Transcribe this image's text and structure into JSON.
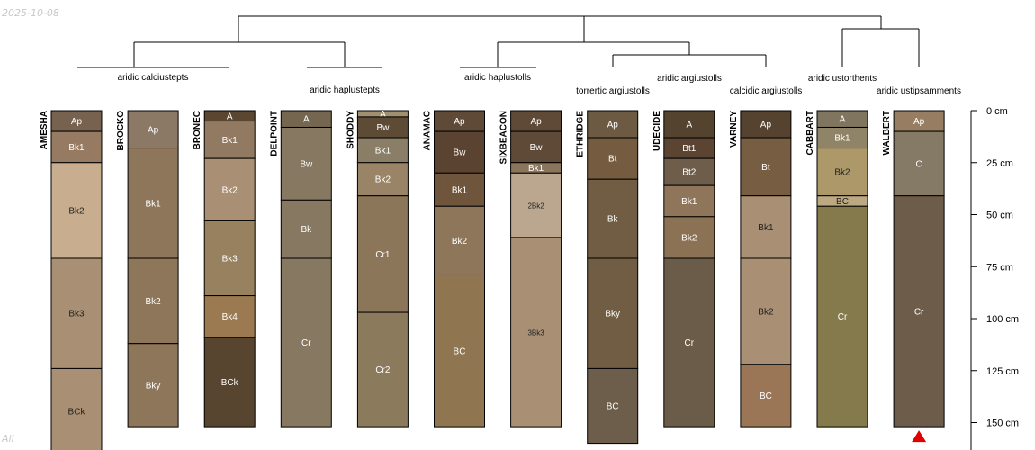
{
  "date_stamp": "2025-10-08",
  "corner_label": "All",
  "depth_axis": {
    "ticks": [
      {
        "depth": 0,
        "label": "0 cm"
      },
      {
        "depth": 25,
        "label": "25 cm"
      },
      {
        "depth": 50,
        "label": "50 cm"
      },
      {
        "depth": 75,
        "label": "75 cm"
      },
      {
        "depth": 100,
        "label": "100 cm"
      },
      {
        "depth": 125,
        "label": "125 cm"
      },
      {
        "depth": 150,
        "label": "150 cm"
      }
    ]
  },
  "taxa_labels": [
    "aridic calciustepts",
    "aridic haplustepts",
    "aridic haplustolls",
    "torrertic argiustolls",
    "aridic argiustolls",
    "calcidic argiustolls",
    "aridic ustorthents",
    "aridic ustipsamments"
  ],
  "marker": {
    "profile": "WALBERT",
    "color": "#e00000",
    "shape": "triangle"
  },
  "profiles": [
    {
      "name": "AMESHA",
      "horizons": [
        {
          "name": "Ap",
          "top": 0,
          "bottom": 10,
          "color": "#76624f",
          "text": "#ffffff"
        },
        {
          "name": "Bk1",
          "top": 10,
          "bottom": 25,
          "color": "#967b62",
          "text": "#ffffff"
        },
        {
          "name": "Bk2",
          "top": 25,
          "bottom": 71,
          "color": "#c8ae8f",
          "text": "#222222"
        },
        {
          "name": "Bk3",
          "top": 71,
          "bottom": 124,
          "color": "#a98f73",
          "text": "#222222"
        },
        {
          "name": "BCk",
          "top": 124,
          "bottom": 165,
          "color": "#a98f73",
          "text": "#222222"
        }
      ]
    },
    {
      "name": "BROCKO",
      "horizons": [
        {
          "name": "Ap",
          "top": 0,
          "bottom": 18,
          "color": "#8b7966",
          "text": "#ffffff"
        },
        {
          "name": "Bk1",
          "top": 18,
          "bottom": 71,
          "color": "#8d7659",
          "text": "#ffffff"
        },
        {
          "name": "Bk2",
          "top": 71,
          "bottom": 112,
          "color": "#8d7659",
          "text": "#ffffff"
        },
        {
          "name": "Bky",
          "top": 112,
          "bottom": 152,
          "color": "#8d7659",
          "text": "#ffffff"
        }
      ]
    },
    {
      "name": "BRONEC",
      "horizons": [
        {
          "name": "A",
          "top": 0,
          "bottom": 5,
          "color": "#5b4632",
          "text": "#ffffff"
        },
        {
          "name": "Bk1",
          "top": 5,
          "bottom": 23,
          "color": "#927a62",
          "text": "#ffffff"
        },
        {
          "name": "Bk2",
          "top": 23,
          "bottom": 53,
          "color": "#a98f73",
          "text": "#ffffff"
        },
        {
          "name": "Bk3",
          "top": 53,
          "bottom": 89,
          "color": "#97815f",
          "text": "#ffffff"
        },
        {
          "name": "Bk4",
          "top": 89,
          "bottom": 109,
          "color": "#9b7a52",
          "text": "#ffffff"
        },
        {
          "name": "BCk",
          "top": 109,
          "bottom": 152,
          "color": "#584530",
          "text": "#ffffff"
        }
      ]
    },
    {
      "name": "DELPOINT",
      "horizons": [
        {
          "name": "A",
          "top": 0,
          "bottom": 8,
          "color": "#756650",
          "text": "#ffffff"
        },
        {
          "name": "Bw",
          "top": 8,
          "bottom": 43,
          "color": "#877862",
          "text": "#ffffff"
        },
        {
          "name": "Bk",
          "top": 43,
          "bottom": 71,
          "color": "#877862",
          "text": "#ffffff"
        },
        {
          "name": "Cr",
          "top": 71,
          "bottom": 152,
          "color": "#877862",
          "text": "#ffffff"
        }
      ]
    },
    {
      "name": "SHODDY",
      "horizons": [
        {
          "name": "A",
          "top": 0,
          "bottom": 3,
          "color": "#a0906f",
          "text": "#ffffff"
        },
        {
          "name": "Bw",
          "top": 3,
          "bottom": 13,
          "color": "#5e4b36",
          "text": "#ffffff"
        },
        {
          "name": "Bk1",
          "top": 13,
          "bottom": 25,
          "color": "#8b7e67",
          "text": "#ffffff"
        },
        {
          "name": "Bk2",
          "top": 25,
          "bottom": 41,
          "color": "#9a8468",
          "text": "#ffffff"
        },
        {
          "name": "Cr1",
          "top": 41,
          "bottom": 97,
          "color": "#8c7659",
          "text": "#ffffff"
        },
        {
          "name": "Cr2",
          "top": 97,
          "bottom": 152,
          "color": "#8c7a5c",
          "text": "#ffffff"
        }
      ]
    },
    {
      "name": "ANAMAC",
      "horizons": [
        {
          "name": "Ap",
          "top": 0,
          "bottom": 10,
          "color": "#5e4a36",
          "text": "#ffffff"
        },
        {
          "name": "Bw",
          "top": 10,
          "bottom": 30,
          "color": "#5a4330",
          "text": "#ffffff"
        },
        {
          "name": "Bk1",
          "top": 30,
          "bottom": 46,
          "color": "#6e553c",
          "text": "#ffffff"
        },
        {
          "name": "Bk2",
          "top": 46,
          "bottom": 79,
          "color": "#8e765a",
          "text": "#ffffff"
        },
        {
          "name": "BC",
          "top": 79,
          "bottom": 152,
          "color": "#8f7550",
          "text": "#ffffff"
        }
      ]
    },
    {
      "name": "SIXBEACON",
      "horizons": [
        {
          "name": "Ap",
          "top": 0,
          "bottom": 10,
          "color": "#5e4a36",
          "text": "#ffffff"
        },
        {
          "name": "Bw",
          "top": 10,
          "bottom": 25,
          "color": "#5e4a36",
          "text": "#ffffff"
        },
        {
          "name": "Bk1",
          "top": 25,
          "bottom": 30,
          "color": "#8a755d",
          "text": "#ffffff"
        },
        {
          "name": "2Bk2",
          "top": 30,
          "bottom": 61,
          "color": "#bba78f",
          "text": "#222222"
        },
        {
          "name": "3Bk3",
          "top": 61,
          "bottom": 152,
          "color": "#a98f73",
          "text": "#222222"
        }
      ]
    },
    {
      "name": "ETHRIDGE",
      "horizons": [
        {
          "name": "Ap",
          "top": 0,
          "bottom": 13,
          "color": "#6d5a43",
          "text": "#ffffff"
        },
        {
          "name": "Bt",
          "top": 13,
          "bottom": 33,
          "color": "#755c40",
          "text": "#ffffff"
        },
        {
          "name": "Bk",
          "top": 33,
          "bottom": 71,
          "color": "#715d43",
          "text": "#ffffff"
        },
        {
          "name": "Bky",
          "top": 71,
          "bottom": 124,
          "color": "#715d43",
          "text": "#ffffff"
        },
        {
          "name": "BC",
          "top": 124,
          "bottom": 160,
          "color": "#6d5d4b",
          "text": "#ffffff"
        }
      ]
    },
    {
      "name": "UDECIDE",
      "horizons": [
        {
          "name": "A",
          "top": 0,
          "bottom": 13,
          "color": "#54432f",
          "text": "#ffffff"
        },
        {
          "name": "Bt1",
          "top": 13,
          "bottom": 23,
          "color": "#5b4532",
          "text": "#ffffff"
        },
        {
          "name": "Bt2",
          "top": 23,
          "bottom": 36,
          "color": "#6e5d4a",
          "text": "#ffffff"
        },
        {
          "name": "Bk1",
          "top": 36,
          "bottom": 51,
          "color": "#8f7559",
          "text": "#ffffff"
        },
        {
          "name": "Bk2",
          "top": 51,
          "bottom": 71,
          "color": "#8c7255",
          "text": "#ffffff"
        },
        {
          "name": "Cr",
          "top": 71,
          "bottom": 152,
          "color": "#6b5c49",
          "text": "#ffffff"
        }
      ]
    },
    {
      "name": "VARNEY",
      "horizons": [
        {
          "name": "Ap",
          "top": 0,
          "bottom": 13,
          "color": "#55432f",
          "text": "#ffffff"
        },
        {
          "name": "Bt",
          "top": 13,
          "bottom": 41,
          "color": "#775e42",
          "text": "#ffffff"
        },
        {
          "name": "Bk1",
          "top": 41,
          "bottom": 71,
          "color": "#a98f73",
          "text": "#222222"
        },
        {
          "name": "Bk2",
          "top": 71,
          "bottom": 122,
          "color": "#a98f73",
          "text": "#222222"
        },
        {
          "name": "BC",
          "top": 122,
          "bottom": 152,
          "color": "#9b7656",
          "text": "#ffffff"
        }
      ]
    },
    {
      "name": "CABBART",
      "horizons": [
        {
          "name": "A",
          "top": 0,
          "bottom": 8,
          "color": "#80755e",
          "text": "#ffffff"
        },
        {
          "name": "Bk1",
          "top": 8,
          "bottom": 18,
          "color": "#908468",
          "text": "#ffffff"
        },
        {
          "name": "Bk2",
          "top": 18,
          "bottom": 41,
          "color": "#ad9869",
          "text": "#222222"
        },
        {
          "name": "BC",
          "top": 41,
          "bottom": 46,
          "color": "#bca982",
          "text": "#222222"
        },
        {
          "name": "Cr",
          "top": 46,
          "bottom": 152,
          "color": "#857a4c",
          "text": "#ffffff"
        }
      ]
    },
    {
      "name": "WALBERT",
      "horizons": [
        {
          "name": "Ap",
          "top": 0,
          "bottom": 10,
          "color": "#977d62",
          "text": "#ffffff"
        },
        {
          "name": "C",
          "top": 10,
          "bottom": 41,
          "color": "#857a66",
          "text": "#ffffff"
        },
        {
          "name": "Cr",
          "top": 41,
          "bottom": 152,
          "color": "#6e5c4b",
          "text": "#ffffff"
        }
      ]
    }
  ]
}
